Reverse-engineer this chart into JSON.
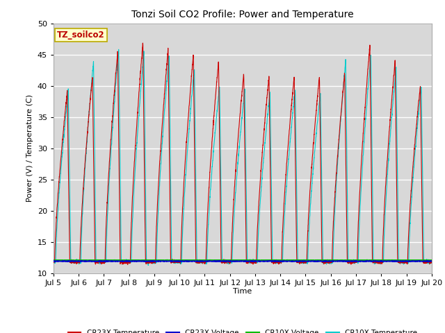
{
  "title": "Tonzi Soil CO2 Profile: Power and Temperature",
  "ylabel": "Power (V) / Temperature (C)",
  "xlabel": "Time",
  "annotation": "TZ_soilco2",
  "ylim": [
    10,
    50
  ],
  "xlim_days": [
    5,
    20
  ],
  "plot_bg_color": "#d8d8d8",
  "fig_bg_color": "#ffffff",
  "grid_color": "#ffffff",
  "cr23x_temp_color": "#cc0000",
  "cr23x_volt_color": "#0000cc",
  "cr10x_volt_color": "#00bb00",
  "cr10x_temp_color": "#00cccc",
  "legend_labels": [
    "CR23X Temperature",
    "CR23X Voltage",
    "CR10X Voltage",
    "CR10X Temperature"
  ],
  "legend_colors": [
    "#cc0000",
    "#0000cc",
    "#00bb00",
    "#00cccc"
  ],
  "tick_labels": [
    "Jul 5",
    "Jul 6",
    "Jul 7",
    "Jul 8",
    "Jul 9",
    "Jul 10",
    "Jul 11",
    "Jul 12",
    "Jul 13",
    "Jul 14",
    "Jul 15",
    "Jul 16",
    "Jul 17",
    "Jul 18",
    "Jul 19",
    "Jul 20"
  ],
  "cr23x_peaks": [
    39.0,
    41.5,
    45.5,
    47.0,
    46.0,
    45.0,
    44.0,
    42.0,
    41.5,
    41.5,
    41.5,
    42.0,
    46.5,
    44.0,
    40.0
  ],
  "cr10x_peaks": [
    39.0,
    44.0,
    46.0,
    45.5,
    45.0,
    43.0,
    40.0,
    39.5,
    39.0,
    39.5,
    39.0,
    44.0,
    45.0,
    43.0,
    40.0
  ],
  "base_temp": 11.8,
  "volt_level": 11.9
}
